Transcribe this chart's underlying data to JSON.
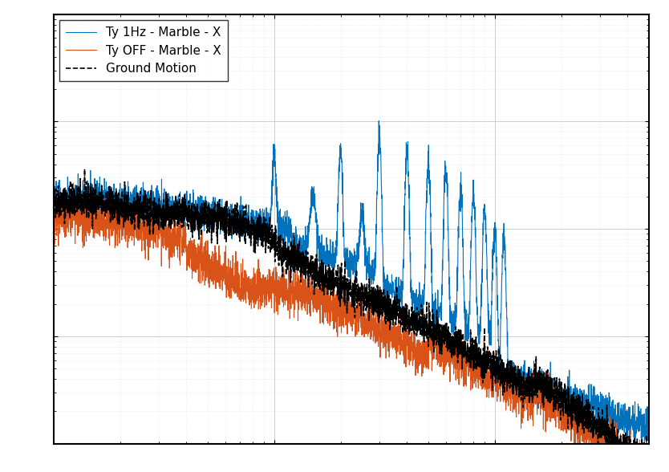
{
  "title": "",
  "xlabel": "",
  "ylabel": "",
  "line1_label": "Ty 1Hz - Marble - X",
  "line2_label": "Ty OFF - Marble - X",
  "line3_label": "Ground Motion",
  "line1_color": "#0072BD",
  "line2_color": "#D95319",
  "line3_color": "#000000",
  "xlim": [
    1,
    500
  ],
  "ylim_log": [
    -9,
    -5
  ],
  "figsize": [
    8.34,
    5.88
  ],
  "dpi": 100,
  "background_color": "#ffffff",
  "grid_color": "#c0c0c0"
}
